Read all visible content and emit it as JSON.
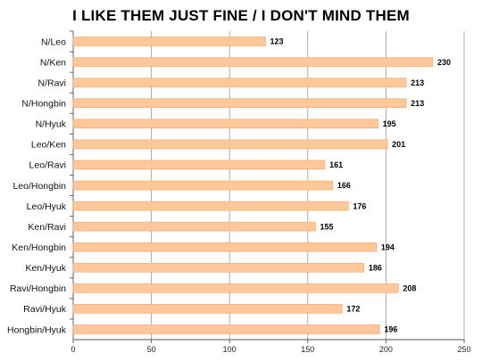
{
  "chart_data": {
    "type": "bar",
    "orientation": "horizontal",
    "title": "I LIKE THEM JUST FINE / I DON'T MIND THEM",
    "categories": [
      "N/Leo",
      "N/Ken",
      "N/Ravi",
      "N/Hongbin",
      "N/Hyuk",
      "Leo/Ken",
      "Leo/Ravi",
      "Leo/Hongbin",
      "Leo/Hyuk",
      "Ken/Ravi",
      "Ken/Hongbin",
      "Ken/Hyuk",
      "Ravi/Hongbin",
      "Ravi/Hyuk",
      "Hongbin/Hyuk"
    ],
    "values": [
      123,
      230,
      213,
      213,
      195,
      201,
      161,
      166,
      176,
      155,
      194,
      186,
      208,
      172,
      196
    ],
    "xlim": [
      0,
      250
    ],
    "xticks": [
      0,
      50,
      100,
      150,
      200,
      250
    ],
    "grid": true,
    "bar_color": "#FFC89A",
    "bar_edge_color": "#F0A56A",
    "grid_color": "#999999"
  }
}
